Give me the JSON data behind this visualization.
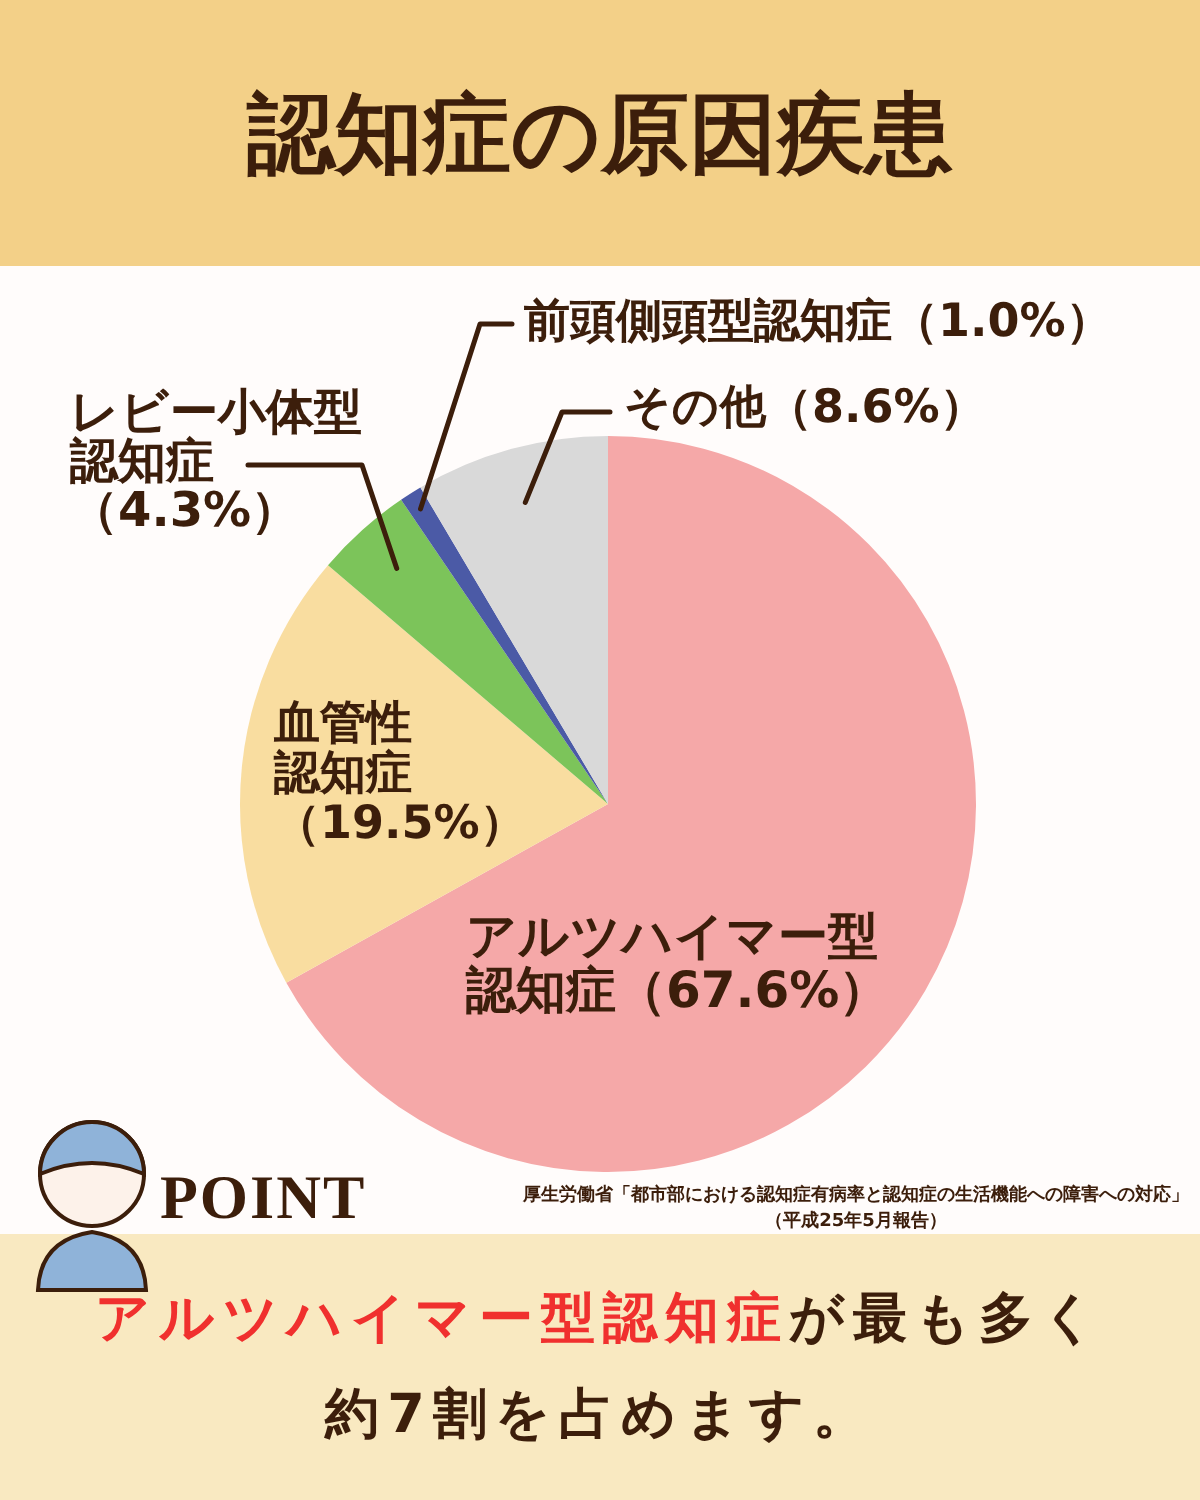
{
  "chart_data": {
    "type": "pie",
    "title": "認知症の原因疾患",
    "categories": [
      "アルツハイマー型認知症",
      "血管性認知症",
      "レビー小体型認知症",
      "前頭側頭型認知症",
      "その他"
    ],
    "values": [
      67.6,
      19.5,
      4.3,
      1.0,
      8.6
    ],
    "value_labels": [
      "（67.6%）",
      "（19.5%）",
      "（4.3%）",
      "（1.0%）",
      "（8.6%）"
    ],
    "colors": [
      "#f5a8a8",
      "#f9dda0",
      "#7cc45a",
      "#4b5aa6",
      "#d9d9d9"
    ],
    "annotations": [
      "POINT",
      "厚生労働省「都市部における認知症有病率と認知症の生活機能への障害への対応」",
      "（平成25年5月報告）",
      "アルツハイマー型認知症",
      "が最も多く",
      "約7割を占めます。"
    ]
  }
}
